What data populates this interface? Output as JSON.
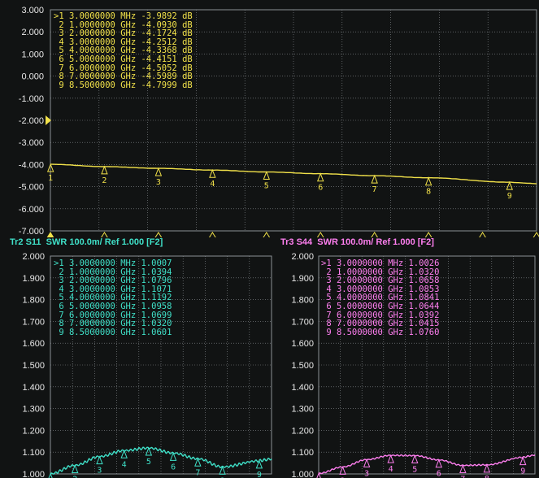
{
  "colors": {
    "tr1": "#f2e24a",
    "tr2": "#3fe0c8",
    "tr3": "#ff7ff0",
    "grid": "#8b9094",
    "label": "#e8e8e8"
  },
  "trace1": {
    "y_ticks": [
      "3.000",
      "2.000",
      "1.000",
      "0.000",
      "-1.000",
      "-2.000",
      "-3.000",
      "-4.000",
      "-5.000",
      "-6.000",
      "-7.000"
    ],
    "ylim": [
      -7,
      3
    ],
    "ref_value": -2,
    "markers": [
      {
        "id": ">1",
        "freq": "3.0000000",
        "unit": "MHz",
        "val": "-3.9892",
        "u": "dB"
      },
      {
        "id": "2",
        "freq": "1.0000000",
        "unit": "GHz",
        "val": "-4.0930",
        "u": "dB"
      },
      {
        "id": "3",
        "freq": "2.0000000",
        "unit": "GHz",
        "val": "-4.1724",
        "u": "dB"
      },
      {
        "id": "4",
        "freq": "3.0000000",
        "unit": "GHz",
        "val": "-4.2512",
        "u": "dB"
      },
      {
        "id": "5",
        "freq": "4.0000000",
        "unit": "GHz",
        "val": "-4.3368",
        "u": "dB"
      },
      {
        "id": "6",
        "freq": "5.0000000",
        "unit": "GHz",
        "val": "-4.4151",
        "u": "dB"
      },
      {
        "id": "7",
        "freq": "6.0000000",
        "unit": "GHz",
        "val": "-4.5052",
        "u": "dB"
      },
      {
        "id": "8",
        "freq": "7.0000000",
        "unit": "GHz",
        "val": "-4.5989",
        "u": "dB"
      },
      {
        "id": "9",
        "freq": "8.5000000",
        "unit": "GHz",
        "val": "-4.7999",
        "u": "dB"
      }
    ]
  },
  "trace2": {
    "header": "Tr2 S11  SWR 100.0m/ Ref 1.000 [F2]",
    "y_ticks": [
      "2.000",
      "1.900",
      "1.800",
      "1.700",
      "1.600",
      "1.500",
      "1.400",
      "1.300",
      "1.200",
      "1.100",
      "1.000"
    ],
    "ylim": [
      1.0,
      2.0
    ],
    "markers": [
      {
        "id": ">1",
        "freq": "3.0000000",
        "unit": "MHz",
        "val": "1.0007"
      },
      {
        "id": "2",
        "freq": "1.0000000",
        "unit": "GHz",
        "val": "1.0394"
      },
      {
        "id": "3",
        "freq": "2.0000000",
        "unit": "GHz",
        "val": "1.0796"
      },
      {
        "id": "4",
        "freq": "3.0000000",
        "unit": "GHz",
        "val": "1.1071"
      },
      {
        "id": "5",
        "freq": "4.0000000",
        "unit": "GHz",
        "val": "1.1192"
      },
      {
        "id": "6",
        "freq": "5.0000000",
        "unit": "GHz",
        "val": "1.0958"
      },
      {
        "id": "7",
        "freq": "6.0000000",
        "unit": "GHz",
        "val": "1.0699"
      },
      {
        "id": "8",
        "freq": "7.0000000",
        "unit": "GHz",
        "val": "1.0320"
      },
      {
        "id": "9",
        "freq": "8.5000000",
        "unit": "GHz",
        "val": "1.0601"
      }
    ]
  },
  "trace3": {
    "header": "Tr3 S44  SWR 100.0m/ Ref 1.000 [F2]",
    "y_ticks": [
      "2.000",
      "1.900",
      "1.800",
      "1.700",
      "1.600",
      "1.500",
      "1.400",
      "1.300",
      "1.200",
      "1.100",
      "1.000"
    ],
    "ylim": [
      1.0,
      2.0
    ],
    "markers": [
      {
        "id": ">1",
        "freq": "3.0000000",
        "unit": "MHz",
        "val": "1.0026"
      },
      {
        "id": "2",
        "freq": "1.0000000",
        "unit": "GHz",
        "val": "1.0320"
      },
      {
        "id": "3",
        "freq": "2.0000000",
        "unit": "GHz",
        "val": "1.0658"
      },
      {
        "id": "4",
        "freq": "3.0000000",
        "unit": "GHz",
        "val": "1.0853"
      },
      {
        "id": "5",
        "freq": "4.0000000",
        "unit": "GHz",
        "val": "1.0841"
      },
      {
        "id": "6",
        "freq": "5.0000000",
        "unit": "GHz",
        "val": "1.0644"
      },
      {
        "id": "7",
        "freq": "6.0000000",
        "unit": "GHz",
        "val": "1.0392"
      },
      {
        "id": "8",
        "freq": "7.0000000",
        "unit": "GHz",
        "val": "1.0415"
      },
      {
        "id": "9",
        "freq": "8.5000000",
        "unit": "GHz",
        "val": "1.0760"
      }
    ]
  },
  "chart_data": [
    {
      "type": "line",
      "series": [
        {
          "values_db": [
            -3.9892,
            -4.093,
            -4.1724,
            -4.2512,
            -4.3368,
            -4.4151,
            -4.5052,
            -4.5989,
            -4.7999
          ]
        }
      ],
      "x_ghz": [
        0.003,
        1,
        2,
        3,
        4,
        5,
        6,
        7,
        8.5
      ],
      "ylim": [
        -7,
        3
      ],
      "grid": true
    },
    {
      "type": "line",
      "series": [
        {
          "values": [
            1.0007,
            1.0394,
            1.0796,
            1.1071,
            1.1192,
            1.0958,
            1.0699,
            1.032,
            1.0601
          ]
        }
      ],
      "x_ghz": [
        0.003,
        1,
        2,
        3,
        4,
        5,
        6,
        7,
        8.5
      ],
      "ylim": [
        1.0,
        2.0
      ],
      "grid": true
    },
    {
      "type": "line",
      "series": [
        {
          "values": [
            1.0026,
            1.032,
            1.0658,
            1.0853,
            1.0841,
            1.0644,
            1.0392,
            1.0415,
            1.076
          ]
        }
      ],
      "x_ghz": [
        0.003,
        1,
        2,
        3,
        4,
        5,
        6,
        7,
        8.5
      ],
      "ylim": [
        1.0,
        2.0
      ],
      "grid": true
    }
  ]
}
